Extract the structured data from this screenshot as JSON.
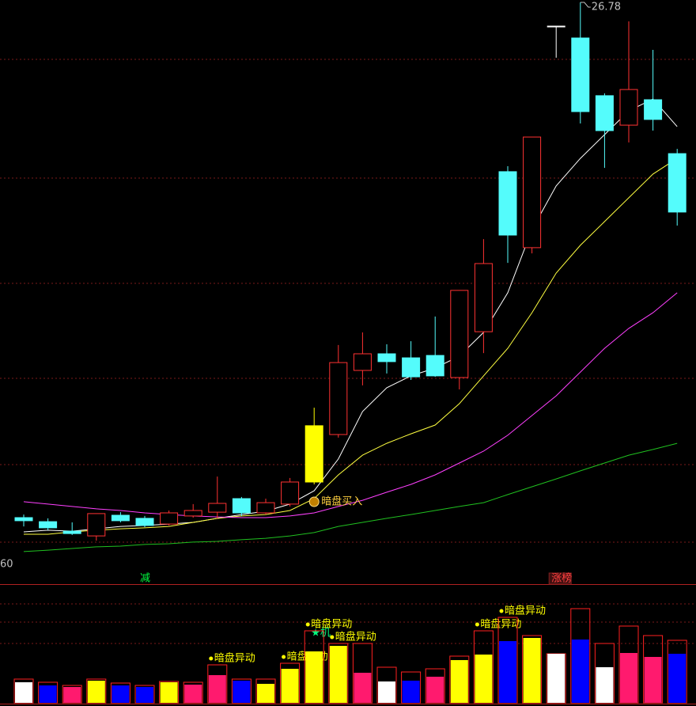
{
  "chart_data": [
    {
      "type": "candlestick",
      "up_color": "#ff3232",
      "colors": [
        "#54fcfc",
        "#54fcfc",
        "#54fcfc",
        "#ff3232",
        "#54fcfc",
        "#54fcfc",
        "#ff3232",
        "#ff3232",
        "#ff3232",
        "#54fcfc",
        "#ff3232",
        "#ff3232",
        "#ffff00",
        "#ff3232",
        "#ff3232",
        "#54fcfc",
        "#54fcfc",
        "#54fcfc",
        "#ff3232",
        "#ff3232",
        "#54fcfc",
        "#ff3232",
        "#ffffff",
        "#54fcfc",
        "#54fcfc",
        "#ff3232",
        "#54fcfc",
        "#54fcfc"
      ],
      "open": [
        5.08,
        4.91,
        4.51,
        4.31,
        5.18,
        5.05,
        4.81,
        5.15,
        5.31,
        5.88,
        5.28,
        5.65,
        6.58,
        8.58,
        11.28,
        11.98,
        11.81,
        11.91,
        10.98,
        12.91,
        19.65,
        16.45,
        25.78,
        25.28,
        22.85,
        21.61,
        22.68,
        20.41
      ],
      "close": [
        4.95,
        4.65,
        4.41,
        5.25,
        4.95,
        4.75,
        5.28,
        5.38,
        5.68,
        5.28,
        5.71,
        6.58,
        8.95,
        11.61,
        11.98,
        11.65,
        11.01,
        11.05,
        14.65,
        15.78,
        16.98,
        21.11,
        25.78,
        22.18,
        21.38,
        23.11,
        21.85,
        17.95
      ],
      "high": [
        5.21,
        5.05,
        4.88,
        5.25,
        5.31,
        5.15,
        5.38,
        5.65,
        6.81,
        5.95,
        5.88,
        6.75,
        9.71,
        12.35,
        12.88,
        12.38,
        12.51,
        13.55,
        14.65,
        16.81,
        19.88,
        21.11,
        25.78,
        26.78,
        22.95,
        25.98,
        24.78,
        20.61
      ],
      "low": [
        4.71,
        4.55,
        4.35,
        4.11,
        4.88,
        4.68,
        4.75,
        5.08,
        5.05,
        5.15,
        5.21,
        5.55,
        6.48,
        8.45,
        10.65,
        11.15,
        10.88,
        11.01,
        10.48,
        12.01,
        15.81,
        16.21,
        24.45,
        21.68,
        19.81,
        20.88,
        21.38,
        17.38
      ],
      "ylim": [
        2.88,
        26.88
      ],
      "moving_averages": [
        {
          "color": "#ffffff",
          "values": [
            4.48,
            4.55,
            4.51,
            4.61,
            4.71,
            4.75,
            4.81,
            4.88,
            5.05,
            5.21,
            5.35,
            5.65,
            6.21,
            7.55,
            9.55,
            10.55,
            11.05,
            11.38,
            11.88,
            12.88,
            14.55,
            17.21,
            19.05,
            20.21,
            21.21,
            22.21,
            22.71,
            21.55
          ]
        },
        {
          "color": "#ffff40",
          "values": [
            4.38,
            4.38,
            4.48,
            4.55,
            4.61,
            4.65,
            4.71,
            4.88,
            5.05,
            5.15,
            5.21,
            5.38,
            5.88,
            6.88,
            7.71,
            8.21,
            8.61,
            8.98,
            9.88,
            11.05,
            12.21,
            13.71,
            15.38,
            16.55,
            17.55,
            18.55,
            19.55,
            20.21
          ]
        },
        {
          "color": "#ff40ff",
          "values": [
            5.75,
            5.65,
            5.55,
            5.45,
            5.38,
            5.28,
            5.21,
            5.15,
            5.11,
            5.08,
            5.08,
            5.15,
            5.28,
            5.55,
            5.81,
            6.15,
            6.48,
            6.88,
            7.38,
            7.88,
            8.55,
            9.38,
            10.21,
            11.21,
            12.21,
            13.05,
            13.71,
            14.55
          ]
        },
        {
          "color": "#20c020",
          "values": [
            3.65,
            3.71,
            3.78,
            3.85,
            3.88,
            3.95,
            3.98,
            4.05,
            4.08,
            4.15,
            4.21,
            4.31,
            4.45,
            4.71,
            4.88,
            5.05,
            5.21,
            5.38,
            5.55,
            5.71,
            6.05,
            6.38,
            6.71,
            7.05,
            7.38,
            7.71,
            7.95,
            8.21
          ]
        }
      ],
      "edge_label": "60",
      "annotations": [
        {
          "text": "暗盘买入",
          "index": 12,
          "color": "#ffd040"
        }
      ],
      "markers": [
        {
          "text": "减",
          "index": 5,
          "color": "#00ff40"
        },
        {
          "text": "涨榜",
          "index": 22,
          "color": "#ff4040"
        }
      ]
    },
    {
      "type": "bar",
      "outer_color": "#ff2020",
      "outer_values": [
        30,
        26,
        22,
        30,
        25,
        22,
        27,
        26,
        48,
        30,
        30,
        50,
        91,
        75,
        75,
        45,
        39,
        43,
        59,
        91,
        108,
        85,
        62,
        119,
        75,
        97,
        85,
        79
      ],
      "values": [
        26,
        22,
        20,
        28,
        22,
        20,
        26,
        23,
        35,
        28,
        24,
        43,
        65,
        72,
        38,
        27,
        28,
        33,
        54,
        61,
        78,
        82,
        62,
        80,
        45,
        63,
        58,
        62
      ],
      "colors": [
        "#ffffff",
        "#0000ff",
        "#ff1a6e",
        "#ffff00",
        "#0000ff",
        "#0000ff",
        "#ffff00",
        "#ff1a6e",
        "#ff1a6e",
        "#0000ff",
        "#ffff00",
        "#ffff00",
        "#ffff00",
        "#ffff00",
        "#ff1a6e",
        "#ffffff",
        "#0000ff",
        "#ff1a6e",
        "#ffff00",
        "#ffff00",
        "#0000ff",
        "#ffff00",
        "#ffffff",
        "#0000ff",
        "#ffffff",
        "#ff1a6e",
        "#ff1a6e",
        "#0000ff"
      ],
      "ylim": [
        0,
        150
      ],
      "annotations": [
        {
          "text": "暗盘异动",
          "index": 8,
          "color": "#ffff00"
        },
        {
          "text": "暗盘异动",
          "index": 11,
          "color": "#ffff00"
        },
        {
          "text": "暗盘异动",
          "index": 12,
          "color": "#ffff00"
        },
        {
          "text": "★机",
          "index": 12,
          "color": "#00ff80"
        },
        {
          "text": "暗盘异动",
          "index": 13,
          "color": "#ffff00"
        },
        {
          "text": "暗盘异动",
          "index": 19,
          "color": "#ffff00"
        },
        {
          "text": "暗盘异动",
          "index": 20,
          "color": "#ffff00"
        }
      ]
    }
  ]
}
